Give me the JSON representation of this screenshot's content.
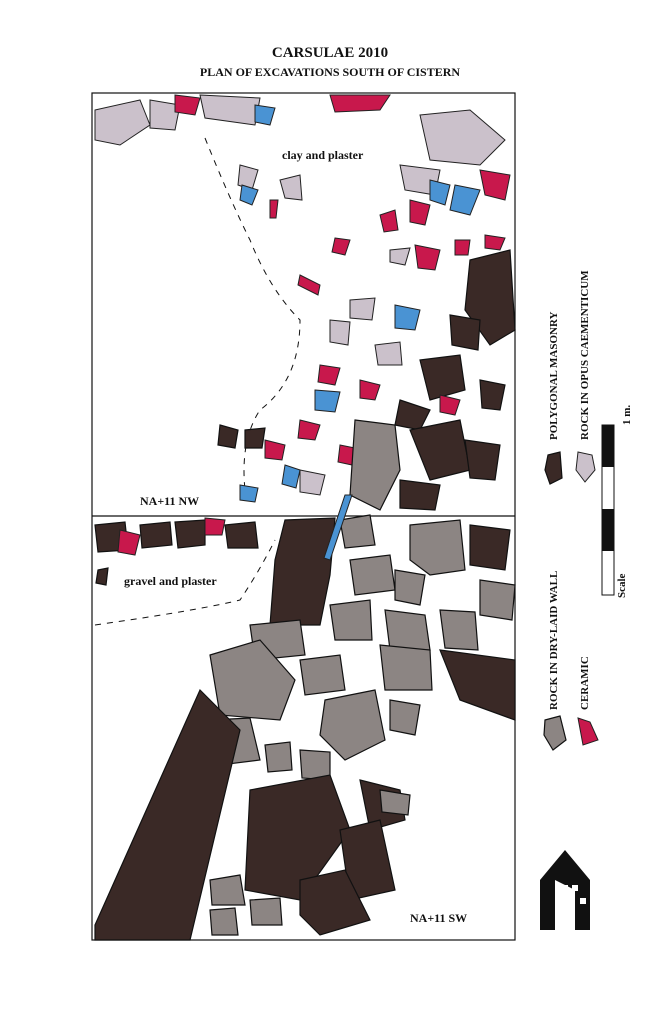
{
  "header": {
    "title": "CARSULAE 2010",
    "subtitle": "PLAN OF EXCAVATIONS SOUTH OF CISTERN"
  },
  "labels": {
    "clay": "clay and plaster",
    "nw": "NA+11 NW",
    "gravel": "gravel and plaster",
    "sw": "NA+11 SW"
  },
  "legend": {
    "items": [
      "POLYGONAL MASONRY",
      "ROCK IN OPUS CAEMENTICUM",
      "ROCK IN DRY-LAID WALL",
      "CERAMIC"
    ]
  },
  "scale": {
    "label": "Scale",
    "unit": "1 m."
  }
}
